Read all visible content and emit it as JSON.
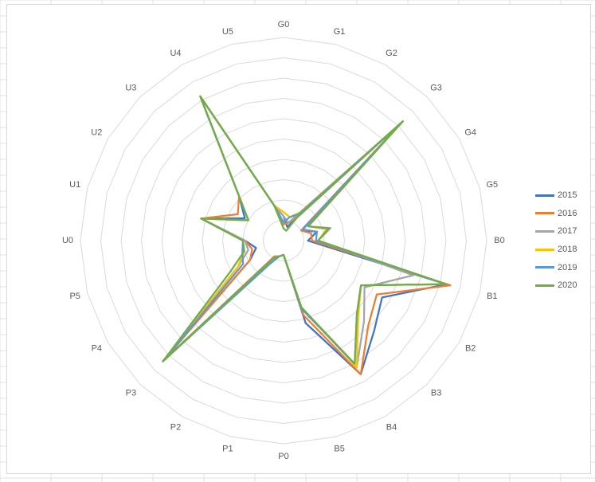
{
  "colors": {
    "series": [
      "#4472c4",
      "#ed7d31",
      "#a5a5a5",
      "#ffc000",
      "#5b9bd5",
      "#70ad47"
    ],
    "grid": "#d9d9d9",
    "label": "#595959",
    "sheet_grid": "#e0e0e0"
  },
  "chart_data": {
    "type": "radar",
    "title": "",
    "categories": [
      "G0",
      "G1",
      "G2",
      "G3",
      "G4",
      "G5",
      "B0",
      "B1",
      "B2",
      "B3",
      "B4",
      "B5",
      "P0",
      "P1",
      "P2",
      "P3",
      "P4",
      "P5",
      "U0",
      "U1",
      "U2",
      "U3",
      "U4",
      "U5"
    ],
    "rlim": [
      0,
      10
    ],
    "ring_count": 10,
    "grid": true,
    "legend_position": "right",
    "series": [
      {
        "name": "2015",
        "values": [
          1.2,
          0.7,
          1.3,
          8.3,
          1.0,
          1.7,
          1.2,
          8.3,
          5.6,
          6.3,
          7.6,
          4.2,
          0.7,
          0.8,
          0.9,
          8.4,
          1.9,
          1.4,
          1.9,
          4.2,
          2.2,
          3.1,
          8.2,
          1.8
        ]
      },
      {
        "name": "2016",
        "values": [
          0.8,
          0.9,
          1.3,
          8.3,
          1.0,
          1.4,
          1.4,
          8.5,
          5.3,
          5.9,
          7.6,
          3.8,
          0.7,
          0.8,
          0.9,
          8.4,
          1.9,
          1.6,
          1.9,
          4.2,
          2.6,
          3.1,
          8.2,
          1.8
        ]
      },
      {
        "name": "2017",
        "values": [
          1.2,
          0.9,
          1.6,
          8.3,
          1.4,
          2.4,
          1.7,
          6.6,
          4.6,
          5.6,
          7.2,
          3.4,
          0.7,
          0.8,
          1.2,
          8.4,
          2.6,
          1.8,
          1.9,
          4.2,
          2.0,
          3.1,
          8.2,
          1.8
        ]
      },
      {
        "name": "2018",
        "values": [
          1.4,
          1.2,
          1.6,
          8.3,
          1.4,
          2.2,
          1.7,
          8.3,
          4.4,
          5.2,
          7.2,
          3.4,
          0.7,
          0.8,
          1.3,
          8.4,
          2.6,
          2.0,
          2.0,
          4.2,
          2.0,
          3.1,
          8.2,
          1.8
        ]
      },
      {
        "name": "2019",
        "values": [
          0.9,
          1.2,
          1.5,
          8.3,
          1.1,
          1.7,
          1.6,
          8.3,
          4.4,
          5.1,
          7.0,
          3.5,
          0.7,
          0.8,
          1.3,
          8.4,
          2.3,
          2.1,
          2.0,
          4.2,
          2.0,
          3.1,
          8.2,
          1.8
        ]
      },
      {
        "name": "2020",
        "values": [
          0.6,
          0.5,
          1.3,
          8.3,
          1.4,
          2.3,
          1.7,
          8.3,
          4.4,
          5.1,
          7.0,
          3.4,
          0.7,
          0.8,
          1.0,
          8.4,
          3.0,
          2.0,
          2.0,
          4.2,
          2.0,
          3.1,
          8.2,
          1.8
        ]
      }
    ]
  }
}
